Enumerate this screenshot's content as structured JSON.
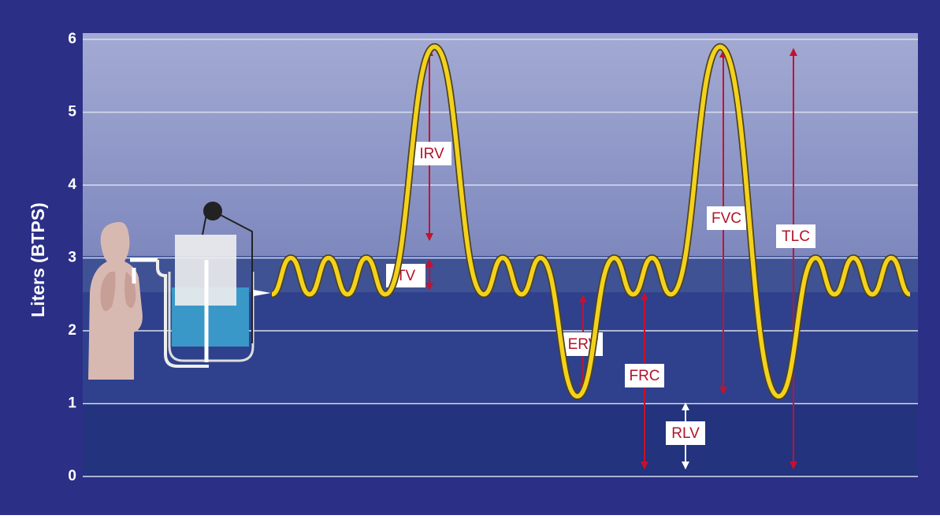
{
  "chart_data": {
    "type": "line",
    "y_label": "Liters (BTPS)",
    "ylim": [
      0,
      6
    ],
    "yticks": [
      0,
      1,
      2,
      3,
      4,
      5,
      6
    ],
    "grid": true,
    "color": "#f4d21c",
    "categories": [
      null,
      null,
      null,
      null,
      null,
      null,
      null,
      null,
      null,
      null,
      null,
      null,
      null,
      null,
      null,
      null,
      null,
      null,
      null,
      null,
      null,
      null,
      null,
      null,
      null
    ],
    "values": [
      2.5,
      3,
      2.5,
      3,
      2.5,
      3,
      2.5,
      5.9,
      2.5,
      3,
      2.5,
      3,
      1.1,
      3,
      2.5,
      3,
      2.5,
      5.9,
      1.1,
      3,
      2.5,
      3,
      2.5,
      3,
      2.5
    ],
    "annotations": [
      "IRV",
      "TV",
      "ERV",
      "FRC",
      "RLV",
      "FVC",
      "TLC"
    ]
  }
}
